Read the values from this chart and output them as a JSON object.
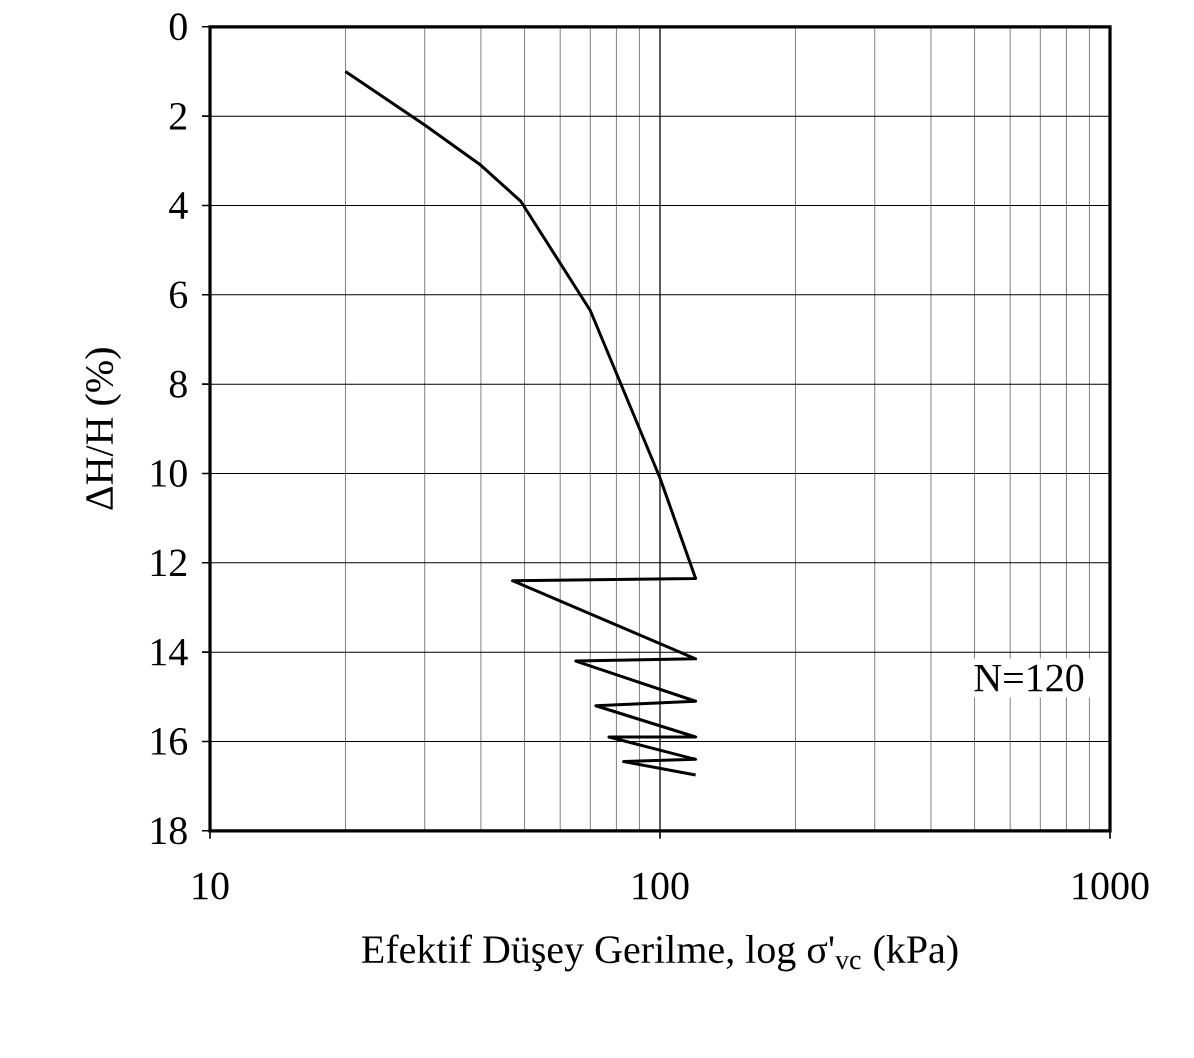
{
  "chart_data": {
    "type": "line",
    "xlabel": "Efektif Düşey Gerilme, log σ'$_{vc}$ (kPa)",
    "ylabel": "ΔH/H (%)",
    "log": "x",
    "grid": true,
    "color": "#000000",
    "xlim": [
      10,
      1000
    ],
    "xticks": [
      10,
      100,
      1000
    ],
    "ylim": [
      18,
      0
    ],
    "yticks": [
      0,
      2,
      4,
      6,
      8,
      10,
      12,
      14,
      16,
      18
    ],
    "annotations": [
      "N=120"
    ],
    "x": [
      20,
      30,
      40,
      49,
      70,
      100,
      120,
      47,
      120,
      65,
      120,
      72,
      120,
      77,
      120,
      83,
      120
    ],
    "values": [
      1,
      2.2,
      3.1,
      3.9,
      6.35,
      10.1,
      12.35,
      12.4,
      14.15,
      14.2,
      15.1,
      15.2,
      15.9,
      15.9,
      16.4,
      16.45,
      16.75
    ]
  }
}
